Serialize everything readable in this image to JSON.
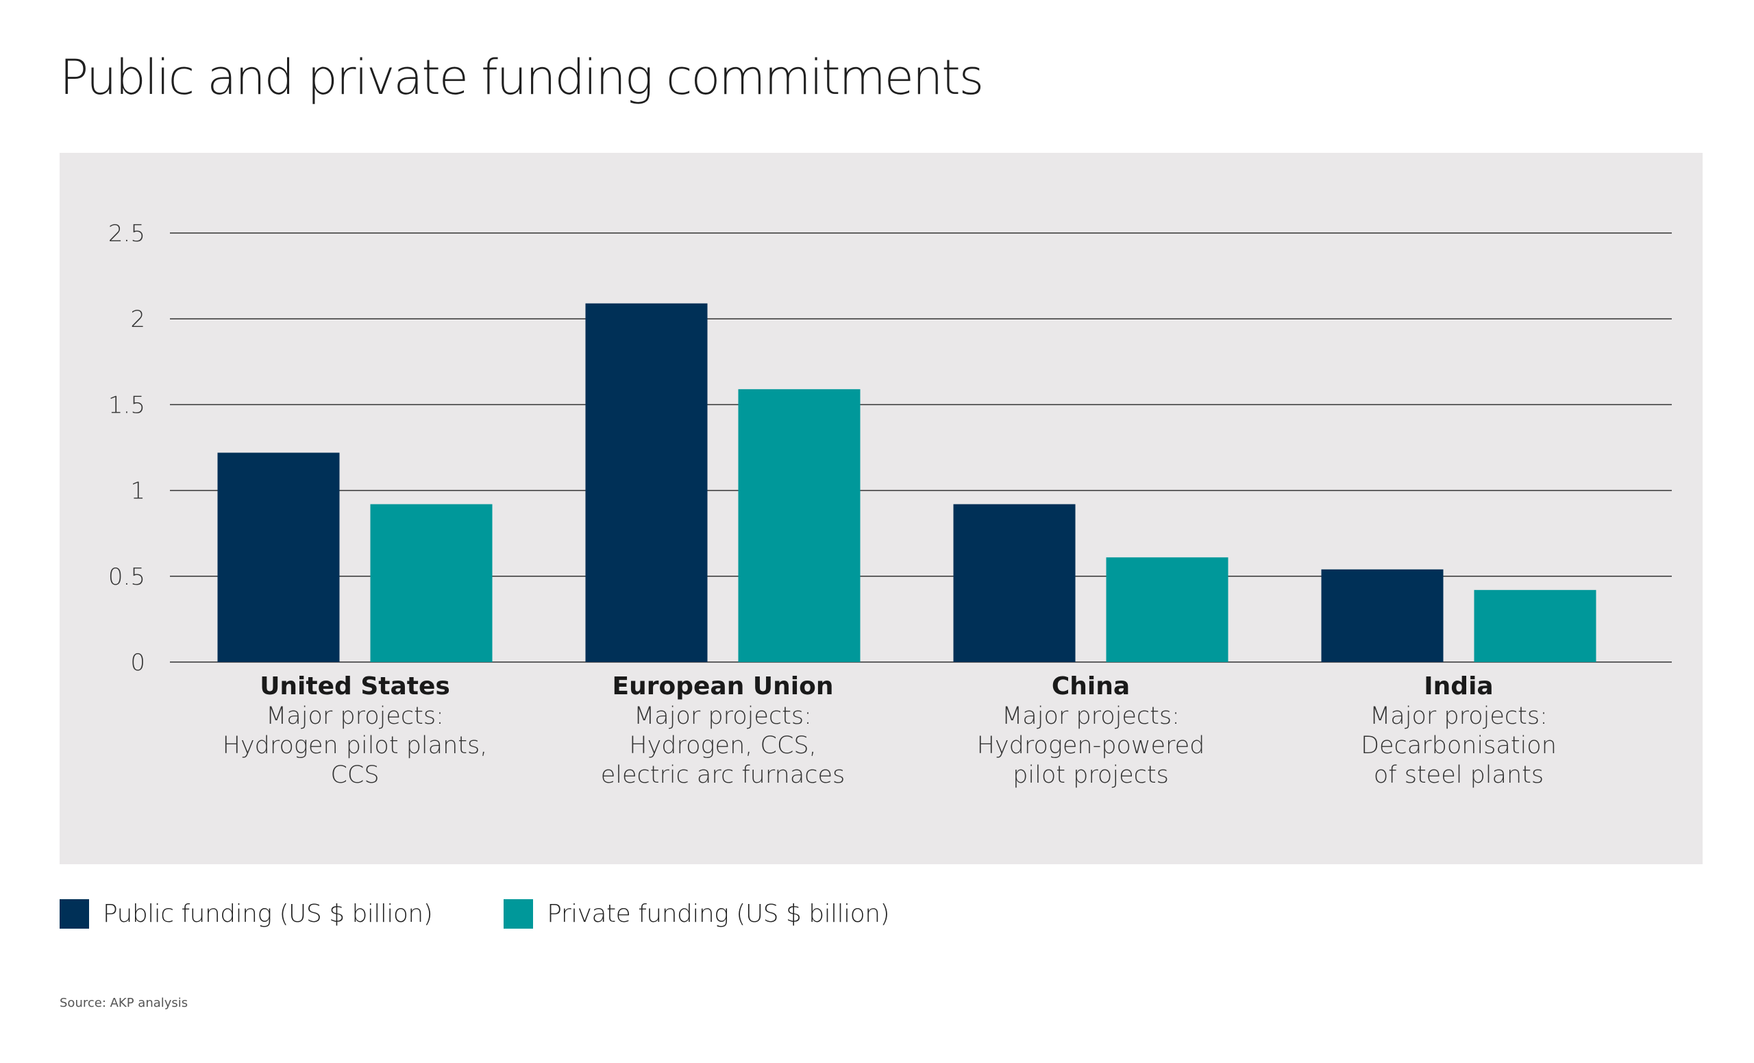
{
  "title": "Public and private funding commitments",
  "colors": {
    "public": "#003057",
    "private": "#00989a",
    "panel": "#eae8e9",
    "gridline": "#333333"
  },
  "legend": [
    {
      "label": "Public funding (US $ billion)",
      "color": "#003057"
    },
    {
      "label": "Private funding (US $ billion)",
      "color": "#00989a"
    }
  ],
  "source": "Source: AKP analysis",
  "chart_data": {
    "type": "bar",
    "ylim": [
      0,
      2.5
    ],
    "yticks": [
      "0",
      "0.5",
      "1",
      "1.5",
      "2",
      "2.5"
    ],
    "ytick_values": [
      0,
      0.5,
      1,
      1.5,
      2,
      2.5
    ],
    "grid": "horizontal",
    "legend_position": "bottom-left",
    "categories": [
      {
        "name": "United States",
        "lines": [
          "Major projects:",
          "Hydrogen pilot plants,",
          "CCS"
        ]
      },
      {
        "name": "European Union",
        "lines": [
          "Major projects:",
          "Hydrogen, CCS,",
          "electric arc furnaces"
        ]
      },
      {
        "name": "China",
        "lines": [
          "Major projects:",
          "Hydrogen-powered",
          "pilot projects"
        ]
      },
      {
        "name": "India",
        "lines": [
          "Major projects:",
          "Decarbonisation",
          "of steel plants"
        ]
      }
    ],
    "series": [
      {
        "name": "Public funding (US $ billion)",
        "values": [
          1.22,
          2.09,
          0.92,
          0.54
        ]
      },
      {
        "name": "Private funding (US $ billion)",
        "values": [
          0.92,
          1.59,
          0.61,
          0.42
        ]
      }
    ]
  }
}
